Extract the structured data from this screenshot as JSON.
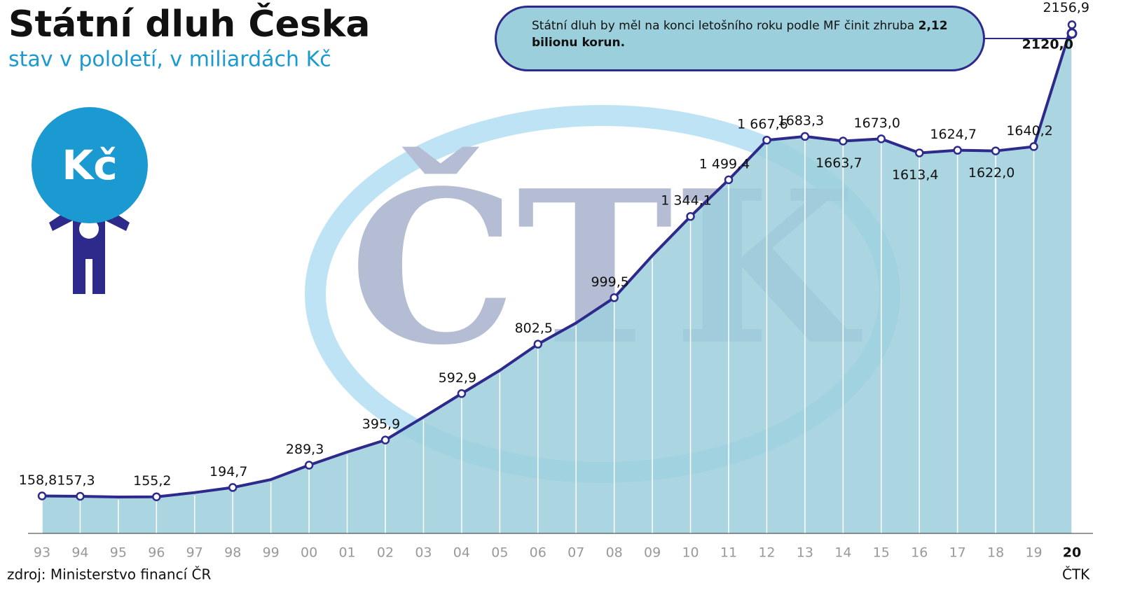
{
  "chart_data": {
    "type": "area",
    "title": "Státní dluh Česka",
    "subtitle": "stav v pololetí, v miliardách Kč",
    "source": "zdroj: Ministerstvo financí ČR",
    "credit": "ČTK",
    "watermark": "ČTK",
    "icon_label": "Kč",
    "categories": [
      "93",
      "94",
      "95",
      "96",
      "97",
      "98",
      "99",
      "00",
      "01",
      "02",
      "03",
      "04",
      "05",
      "06",
      "07",
      "08",
      "09",
      "10",
      "11",
      "12",
      "13",
      "14",
      "15",
      "16",
      "17",
      "18",
      "19",
      "20"
    ],
    "values": [
      158.8,
      157.3,
      154.4,
      155.2,
      173.1,
      194.7,
      228.4,
      289.3,
      345.0,
      395.9,
      493.2,
      592.9,
      691.2,
      802.5,
      892.3,
      999.5,
      1178.2,
      1344.1,
      1499.4,
      1667.6,
      1683.3,
      1663.7,
      1673.0,
      1613.4,
      1624.7,
      1622.0,
      1640.2,
      2156.9
    ],
    "value_labels": [
      "158,8",
      "157,3",
      null,
      "155,2",
      null,
      "194,7",
      null,
      "289,3",
      null,
      "395,9",
      null,
      "592,9",
      null,
      "802,5",
      null,
      "999,5",
      null,
      "1 344,1",
      "1 499,4",
      "1 667,6",
      "1683,3",
      "1663,7",
      "1673,0",
      "1613,4",
      "1624,7",
      "1622,0",
      "1640,2",
      "2156,9"
    ],
    "color": "#2e2a8c",
    "area_color": "#9ccfdc",
    "ylim": [
      0,
      2250
    ],
    "forecast": {
      "value": 2120.0,
      "value_label": "2120,0",
      "text": "Státní dluh by měl na konci letošního roku podle MF činit zhruba ",
      "text_bold": "2,12 bilionu korun."
    }
  }
}
